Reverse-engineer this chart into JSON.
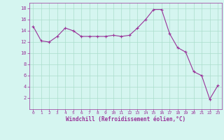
{
  "x": [
    0,
    1,
    2,
    3,
    4,
    5,
    6,
    7,
    8,
    9,
    10,
    11,
    12,
    13,
    14,
    15,
    16,
    17,
    18,
    19,
    20,
    21,
    22,
    23
  ],
  "y": [
    14.8,
    12.2,
    12.0,
    13.0,
    14.5,
    14.0,
    13.0,
    13.0,
    13.0,
    13.0,
    13.2,
    13.0,
    13.2,
    14.5,
    16.0,
    17.8,
    17.8,
    13.5,
    11.0,
    10.2,
    6.7,
    6.0,
    1.8,
    4.2
  ],
  "line_color": "#993399",
  "marker": "+",
  "marker_color": "#993399",
  "bg_color": "#d5f5f0",
  "grid_color": "#aaddcc",
  "xlabel": "Windchill (Refroidissement éolien,°C)",
  "xlabel_color": "#993399",
  "tick_color": "#993399",
  "spine_color": "#993399",
  "ylim": [
    0,
    19
  ],
  "xlim": [
    -0.5,
    23.5
  ],
  "yticks": [
    2,
    4,
    6,
    8,
    10,
    12,
    14,
    16,
    18
  ],
  "xticks": [
    0,
    1,
    2,
    3,
    4,
    5,
    6,
    7,
    8,
    9,
    10,
    11,
    12,
    13,
    14,
    15,
    16,
    17,
    18,
    19,
    20,
    21,
    22,
    23
  ],
  "figsize": [
    3.2,
    2.0
  ],
  "dpi": 100
}
